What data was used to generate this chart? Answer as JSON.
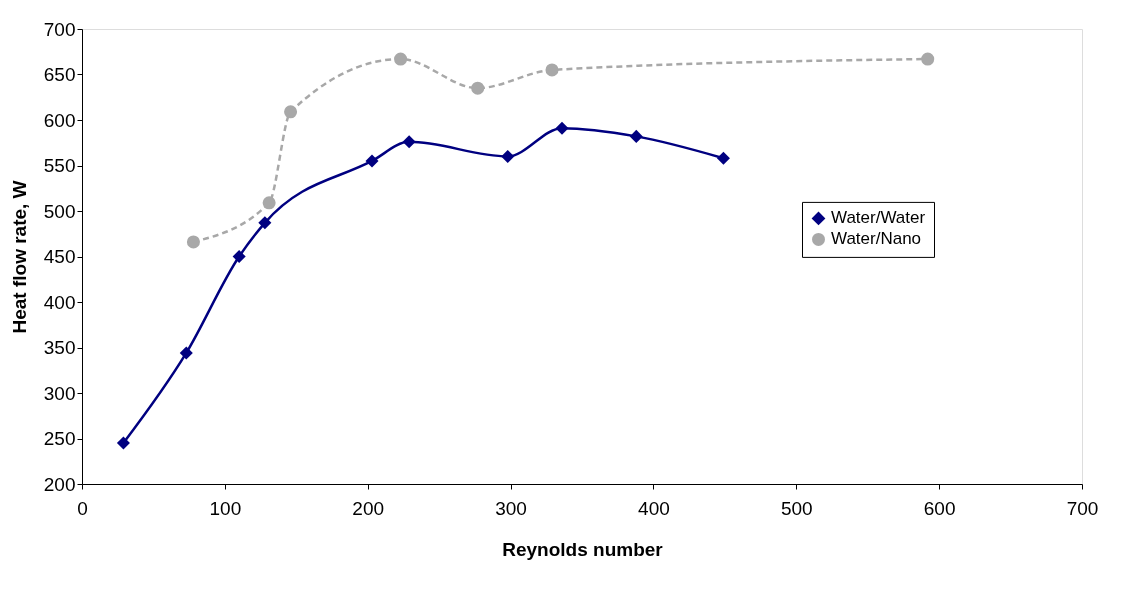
{
  "chart_data": {
    "type": "line",
    "xlabel": "Reynolds number",
    "ylabel": "Heat flow rate, W",
    "xlim": [
      0,
      700
    ],
    "xticks": [
      0,
      100,
      200,
      300,
      400,
      500,
      600,
      700
    ],
    "ylim": [
      200,
      700
    ],
    "yticks": [
      200,
      250,
      300,
      350,
      400,
      450,
      500,
      550,
      600,
      650,
      700
    ],
    "grid": false,
    "legend": "right",
    "series": [
      {
        "name": "Water/Water",
        "color": "#000080",
        "marker": "diamond",
        "line_style": "solid",
        "x": [
          29,
          73,
          110,
          128,
          203,
          229,
          298,
          336,
          388,
          449
        ],
        "values": [
          245,
          344,
          450,
          487,
          555,
          576,
          560,
          591,
          582,
          558
        ]
      },
      {
        "name": "Water/Nano",
        "color": "#a8a8a8",
        "marker": "circle",
        "line_style": "dashed",
        "x": [
          78,
          131,
          146,
          223,
          277,
          329,
          592
        ],
        "values": [
          466,
          509,
          609,
          667,
          635,
          655,
          667
        ]
      }
    ]
  }
}
